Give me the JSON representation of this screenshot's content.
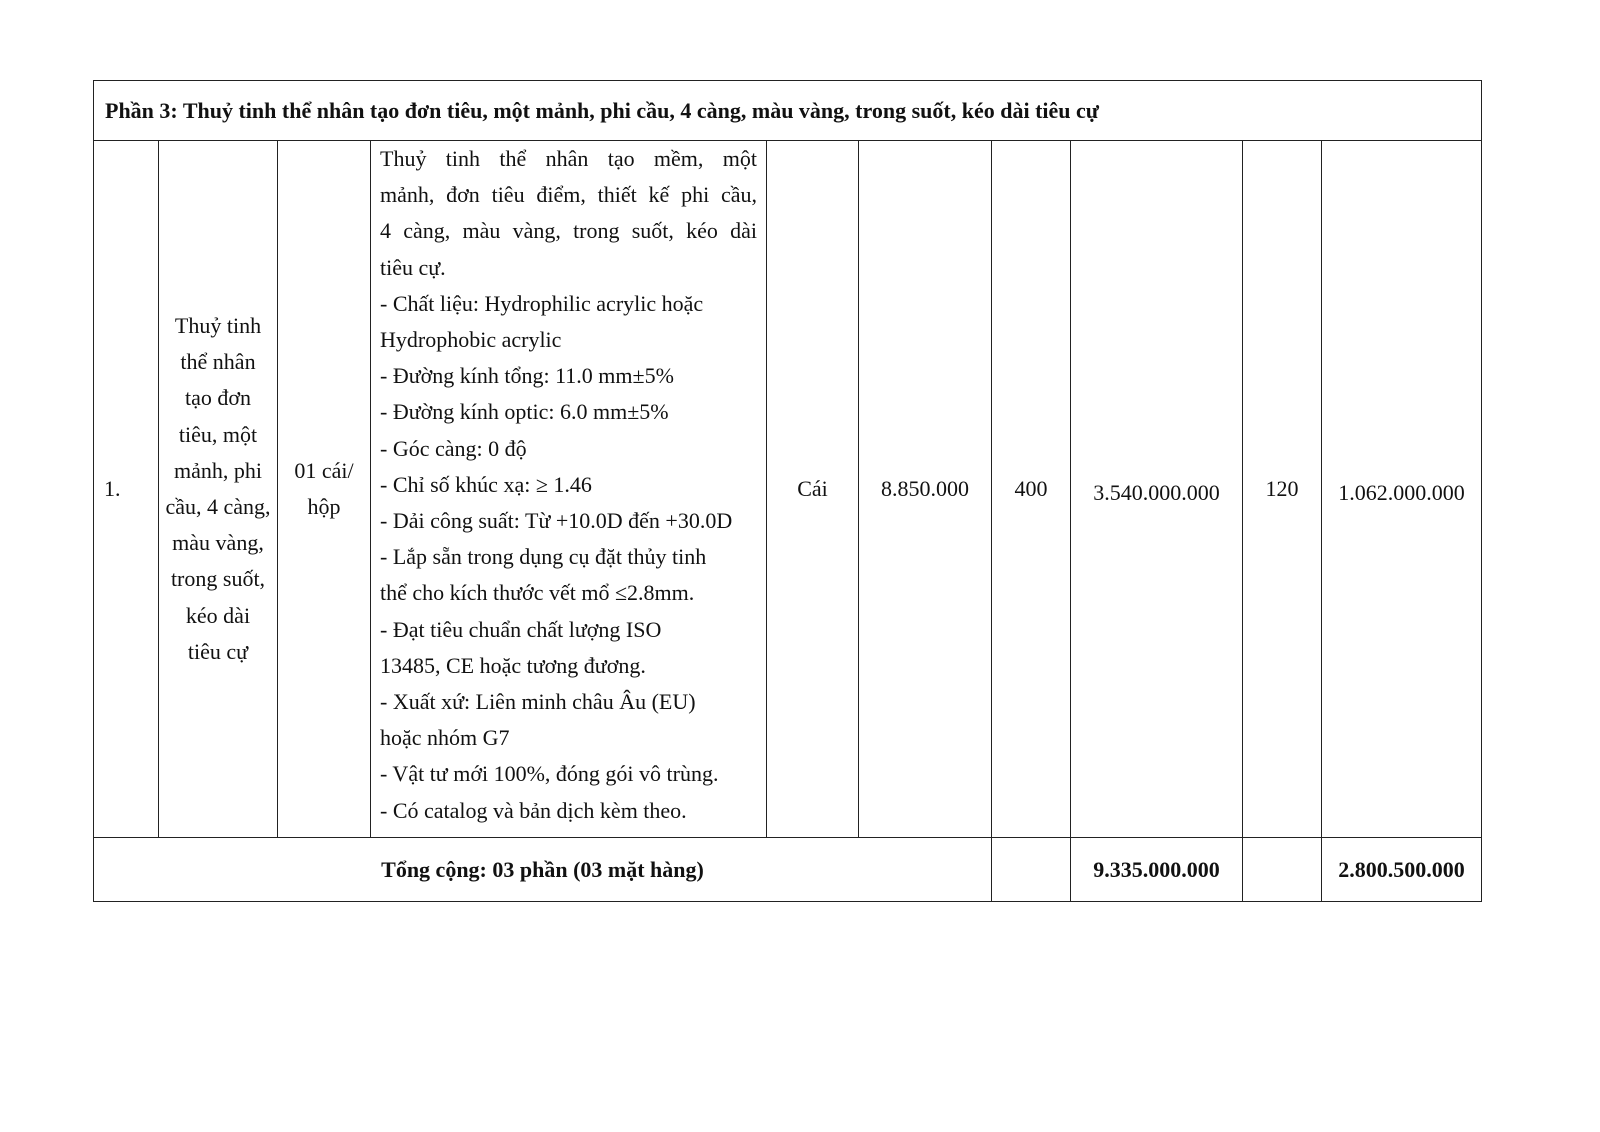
{
  "section_title": "Phần 3: Thuỷ tinh thể nhân tạo đơn tiêu, một mảnh, phi cầu, 4 càng, màu vàng, trong suốt, kéo dài tiêu cự",
  "row": {
    "stt": "1.",
    "name_lines": [
      "Thuỷ tinh",
      "thể nhân",
      "tạo đơn",
      "tiêu, một",
      "mảnh, phi",
      "cầu, 4 càng,",
      "màu vàng,",
      "trong suốt,",
      "kéo dài",
      "tiêu cự"
    ],
    "packing_lines": [
      "01 cái/",
      "hộp"
    ],
    "description_lines": [
      "Thuỷ tinh thể nhân tạo mềm, một",
      "mảnh, đơn tiêu điểm, thiết kế phi cầu,",
      "4 càng, màu vàng, trong suốt, kéo dài",
      "tiêu cự.",
      "- Chất liệu: Hydrophilic acrylic hoặc",
      "Hydrophobic acrylic",
      "- Đường kính tổng: 11.0 mm±5%",
      "- Đường kính optic: 6.0 mm±5%",
      "- Góc càng: 0 độ",
      "- Chỉ số khúc xạ: ≥ 1.46",
      "- Dải công suất: Từ +10.0D đến +30.0D",
      "- Lắp sẵn trong dụng cụ đặt thủy tinh",
      "thể cho kích thước vết mổ ≤2.8mm.",
      "- Đạt tiêu chuẩn chất lượng ISO",
      "13485, CE hoặc tương đương.",
      "- Xuất xứ: Liên minh châu Âu (EU)",
      "hoặc nhóm G7",
      "- Vật tư mới 100%, đóng gói vô trùng.",
      "- Có catalog và bản dịch kèm theo."
    ],
    "unit": "Cái",
    "unit_price": "8.850.000",
    "quantity": "400",
    "amount": "3.540.000.000",
    "quantity2": "120",
    "amount2": "1.062.000.000"
  },
  "total": {
    "label": "Tổng cộng: 03 phần (03 mặt hàng)",
    "amount": "9.335.000.000",
    "amount2": "2.800.500.000"
  }
}
